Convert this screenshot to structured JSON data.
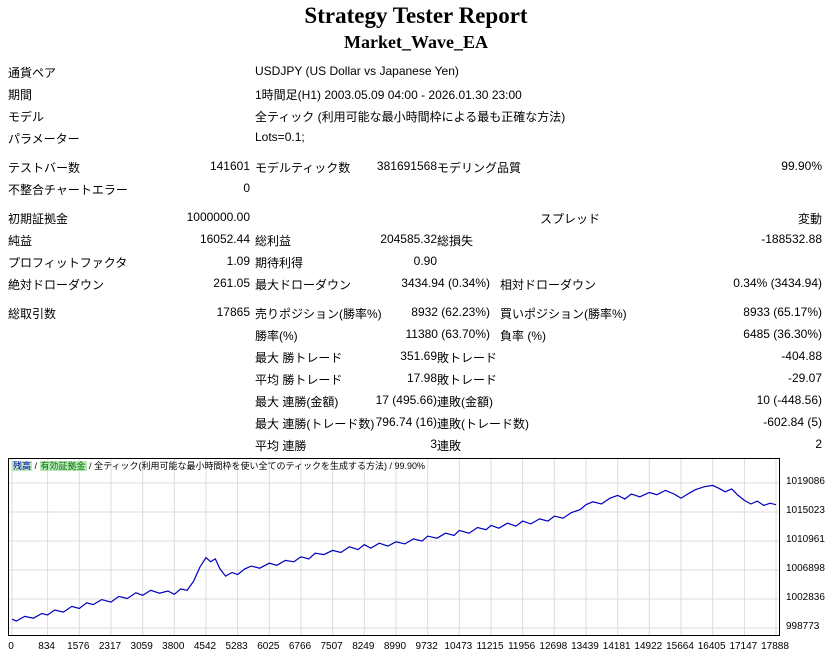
{
  "header": {
    "title": "Strategy Tester Report",
    "subtitle": "Market_Wave_EA"
  },
  "table": {
    "rows": [
      {
        "l1": "通貨ペア",
        "vw": "USDJPY (US Dollar vs Japanese Yen)"
      },
      {
        "l1": "期間",
        "vw": "1時間足(H1) 2003.05.09 04:00 - 2026.01.30 23:00"
      },
      {
        "l1": "モデル",
        "vw": "全ティック (利用可能な最小時間枠による最も正確な方法)"
      },
      {
        "l1": "パラメーター",
        "vw": "Lots=0.1;"
      },
      {
        "l1": "テストバー数",
        "v1": "141601",
        "l2": "モデルティック数",
        "v2": "381691568",
        "l3": "モデリング品質",
        "v3": "99.90%"
      },
      {
        "l1": "不整合チャートエラー",
        "v1": "0"
      },
      {
        "l1": "初期証拠金",
        "v1": "1000000.00",
        "l3": "スプレッド",
        "v3": "変動"
      },
      {
        "l1": "純益",
        "v1": "16052.44",
        "l2": "総利益",
        "v2": "204585.32",
        "l3": "総損失",
        "v3": "-188532.88"
      },
      {
        "l1": "プロフィットファクタ",
        "v1": "1.09",
        "l2": "期待利得",
        "v2": "0.90"
      },
      {
        "l1": "絶対ドローダウン",
        "v1": "261.05",
        "l2": "最大ドローダウン",
        "v2": "3434.94 (0.34%)",
        "l3": "相対ドローダウン",
        "v3": "0.34% (3434.94)"
      },
      {
        "l1": "総取引数",
        "v1": "17865",
        "l2": "売りポジション(勝率%)",
        "v2": "8932 (62.23%)",
        "l3": "買いポジション(勝率%)",
        "v3": "8933 (65.17%)"
      },
      {
        "l2": "勝率(%)",
        "v2": "11380 (63.70%)",
        "l3": "負率 (%)",
        "v3": "6485 (36.30%)"
      },
      {
        "l2": "最大 勝トレード",
        "v2": "351.69",
        "l3": "敗トレード",
        "v3": "-404.88"
      },
      {
        "l2": "平均 勝トレード",
        "v2": "17.98",
        "l3": "敗トレード",
        "v3": "-29.07"
      },
      {
        "l2": "最大 連勝(金額)",
        "v2": "17 (495.66)",
        "l3": "連敗(金額)",
        "v3": "10 (-448.56)"
      },
      {
        "l2": "最大 連勝(トレード数)",
        "v2": "796.74 (16)",
        "l3": "連敗(トレード数)",
        "v3": "-602.84 (5)"
      },
      {
        "l2": "平均 連勝",
        "v2": "3",
        "l3": "連敗",
        "v3": "2"
      }
    ]
  },
  "chart": {
    "legend": {
      "balance": "残高",
      "sep1": " / ",
      "equity": "有効証拠金",
      "sep2": " / ",
      "model": "全ティック(利用可能な最小時間枠を使い全てのティックを生成する方法) / 99.90%"
    }
  },
  "chart_data": {
    "type": "line",
    "title": "",
    "xlabel": "",
    "ylabel": "",
    "grid": true,
    "legend_position": "top-left",
    "xlim": [
      0,
      17888
    ],
    "x_ticks": [
      0,
      834,
      1576,
      2317,
      3059,
      3800,
      4542,
      5283,
      6025,
      6766,
      7507,
      8249,
      8990,
      9732,
      10473,
      11215,
      11956,
      12698,
      13439,
      14181,
      14922,
      15664,
      16405,
      17147,
      17888
    ],
    "y_ticks": [
      998773,
      1002836,
      1006898,
      1010961,
      1015023,
      1019086
    ],
    "series": [
      {
        "name": "残高",
        "color": "#0000c0",
        "points": [
          [
            0,
            1000000
          ],
          [
            100,
            999740
          ],
          [
            300,
            1000400
          ],
          [
            500,
            1000150
          ],
          [
            700,
            1000800
          ],
          [
            834,
            1000600
          ],
          [
            1000,
            1001300
          ],
          [
            1200,
            1001000
          ],
          [
            1400,
            1001800
          ],
          [
            1576,
            1001500
          ],
          [
            1750,
            1002300
          ],
          [
            1900,
            1002050
          ],
          [
            2100,
            1002750
          ],
          [
            2317,
            1002400
          ],
          [
            2500,
            1003200
          ],
          [
            2700,
            1002900
          ],
          [
            2900,
            1003700
          ],
          [
            3059,
            1003350
          ],
          [
            3250,
            1004050
          ],
          [
            3450,
            1003650
          ],
          [
            3650,
            1003950
          ],
          [
            3800,
            1003500
          ],
          [
            3950,
            1004250
          ],
          [
            4100,
            1004050
          ],
          [
            4250,
            1005300
          ],
          [
            4400,
            1007300
          ],
          [
            4542,
            1008650
          ],
          [
            4650,
            1008050
          ],
          [
            4760,
            1008450
          ],
          [
            4870,
            1007050
          ],
          [
            5000,
            1006050
          ],
          [
            5150,
            1006550
          ],
          [
            5283,
            1006250
          ],
          [
            5450,
            1007050
          ],
          [
            5600,
            1007450
          ],
          [
            5800,
            1007150
          ],
          [
            6025,
            1007850
          ],
          [
            6200,
            1007550
          ],
          [
            6400,
            1008250
          ],
          [
            6600,
            1008050
          ],
          [
            6766,
            1008750
          ],
          [
            6950,
            1008450
          ],
          [
            7100,
            1009250
          ],
          [
            7300,
            1009050
          ],
          [
            7507,
            1009650
          ],
          [
            7700,
            1009350
          ],
          [
            7900,
            1010150
          ],
          [
            8100,
            1009750
          ],
          [
            8249,
            1010450
          ],
          [
            8400,
            1009950
          ],
          [
            8600,
            1010650
          ],
          [
            8800,
            1010250
          ],
          [
            8990,
            1010850
          ],
          [
            9200,
            1010550
          ],
          [
            9400,
            1011250
          ],
          [
            9600,
            1010950
          ],
          [
            9732,
            1011650
          ],
          [
            9950,
            1011350
          ],
          [
            10150,
            1012050
          ],
          [
            10350,
            1011750
          ],
          [
            10473,
            1012450
          ],
          [
            10700,
            1012050
          ],
          [
            10900,
            1012850
          ],
          [
            11100,
            1012550
          ],
          [
            11215,
            1013150
          ],
          [
            11400,
            1012750
          ],
          [
            11600,
            1013450
          ],
          [
            11800,
            1013050
          ],
          [
            11956,
            1013750
          ],
          [
            12150,
            1013350
          ],
          [
            12350,
            1014050
          ],
          [
            12550,
            1013750
          ],
          [
            12698,
            1014450
          ],
          [
            12900,
            1014150
          ],
          [
            13100,
            1014950
          ],
          [
            13300,
            1015350
          ],
          [
            13439,
            1016050
          ],
          [
            13600,
            1016450
          ],
          [
            13800,
            1016150
          ],
          [
            14000,
            1016950
          ],
          [
            14181,
            1017350
          ],
          [
            14350,
            1016850
          ],
          [
            14500,
            1017550
          ],
          [
            14700,
            1017150
          ],
          [
            14922,
            1017750
          ],
          [
            15100,
            1017450
          ],
          [
            15300,
            1018050
          ],
          [
            15500,
            1017550
          ],
          [
            15664,
            1016950
          ],
          [
            15850,
            1017650
          ],
          [
            16000,
            1018150
          ],
          [
            16200,
            1018550
          ],
          [
            16405,
            1018750
          ],
          [
            16550,
            1018350
          ],
          [
            16700,
            1017850
          ],
          [
            16850,
            1018250
          ],
          [
            17000,
            1017350
          ],
          [
            17147,
            1016650
          ],
          [
            17300,
            1016150
          ],
          [
            17450,
            1016550
          ],
          [
            17600,
            1015950
          ],
          [
            17750,
            1016250
          ],
          [
            17888,
            1016052
          ]
        ]
      }
    ]
  }
}
